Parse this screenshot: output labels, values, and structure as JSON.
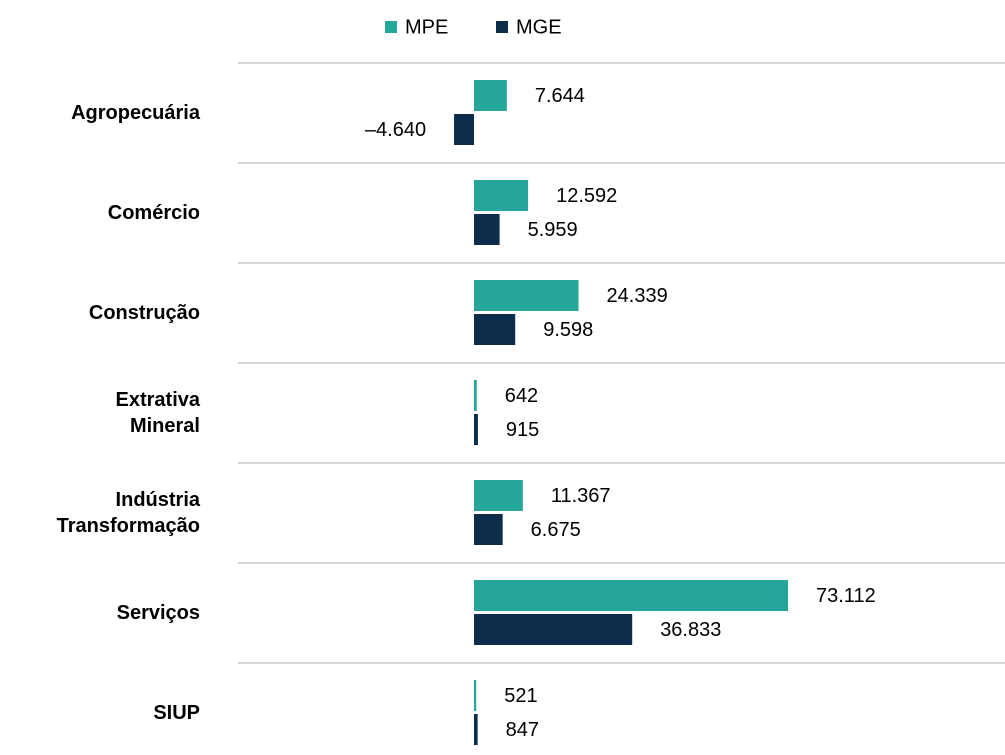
{
  "chart_data": {
    "type": "hbar",
    "categories": [
      "Agropecuária",
      "Comércio",
      "Construção",
      "Extrativa\nMineral",
      "Indústria\nTransformação",
      "Serviços",
      "SIUP"
    ],
    "series": [
      {
        "name": "MPE",
        "color": "#26a69a",
        "values": [
          7644,
          12592,
          24339,
          642,
          11367,
          73112,
          521
        ],
        "value_labels": [
          "7.644",
          "12.592",
          "24.339",
          "642",
          "11.367",
          "73.112",
          "521"
        ]
      },
      {
        "name": "MGE",
        "color": "#0b2d4a",
        "values": [
          -4640,
          5959,
          9598,
          915,
          6675,
          36833,
          847
        ],
        "value_labels": [
          "–4.640",
          "5.959",
          "9.598",
          "915",
          "6.675",
          "36.833",
          "847"
        ]
      }
    ],
    "negative_label_color": "#ff0000",
    "legend": "top"
  }
}
